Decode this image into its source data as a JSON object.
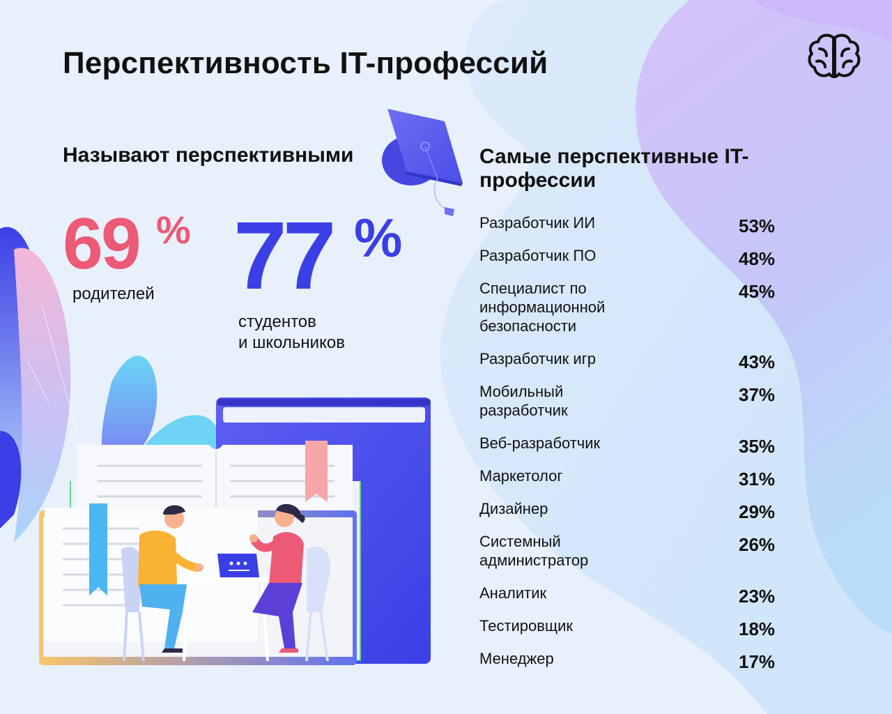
{
  "title": "Перспективность IT-профессий",
  "logo": {
    "icon": "brain-icon"
  },
  "left": {
    "subtitle": "Называют перспективными",
    "parents": {
      "value": "69",
      "percent_sign": "%",
      "label": "родителей",
      "color": "#ec5a76"
    },
    "students": {
      "value": "77",
      "percent_sign": "%",
      "label": "студентов\nи школьников",
      "color": "#3b3fe6"
    }
  },
  "right": {
    "title": "Самые перспективные IT-профессии",
    "professions": [
      {
        "name": "Разработчик ИИ",
        "percent": "53%"
      },
      {
        "name": "Разработчик ПО",
        "percent": "48%"
      },
      {
        "name": "Специалист по информационной безопасности",
        "percent": "45%"
      },
      {
        "name": "Разработчик игр",
        "percent": "43%"
      },
      {
        "name": "Мобильный разработчик",
        "percent": "37%"
      },
      {
        "name": "Веб-разработчик",
        "percent": "35%"
      },
      {
        "name": "Маркетолог",
        "percent": "31%"
      },
      {
        "name": "Дизайнер",
        "percent": "29%"
      },
      {
        "name": "Системный администратор",
        "percent": "26%"
      },
      {
        "name": "Аналитик",
        "percent": "23%"
      },
      {
        "name": "Тестировщик",
        "percent": "18%"
      },
      {
        "name": "Менеджер",
        "percent": "17%"
      }
    ]
  }
}
